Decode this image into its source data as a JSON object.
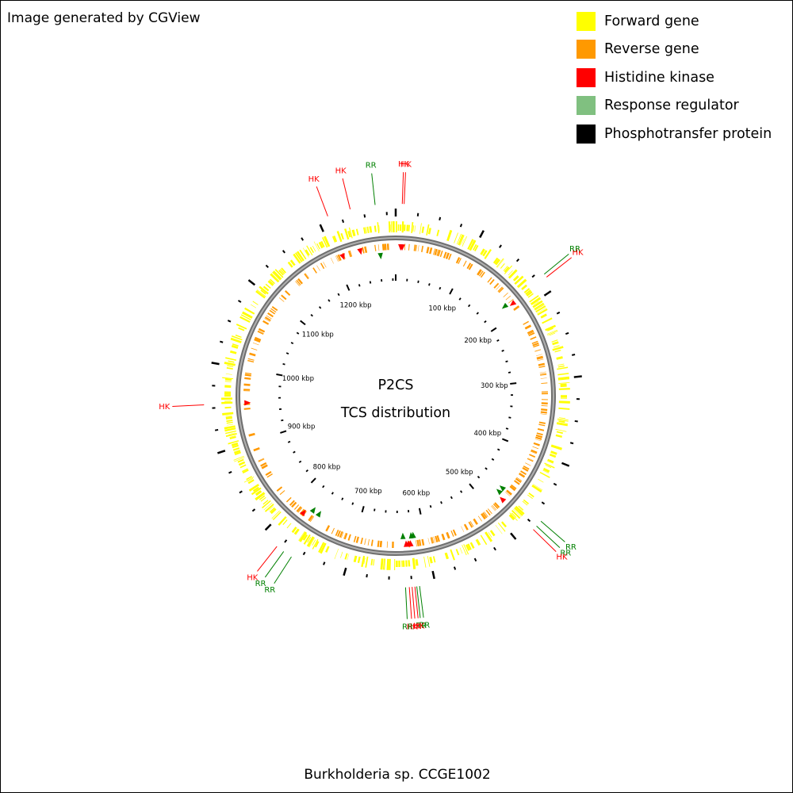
{
  "header": {
    "credit": "Image generated by CGView"
  },
  "legend": [
    {
      "label": "Forward gene",
      "color": "#ffff00",
      "icon": "square-swatch"
    },
    {
      "label": "Reverse gene",
      "color": "#ff9900",
      "icon": "square-swatch"
    },
    {
      "label": "Histidine kinase",
      "color": "#ff0000",
      "icon": "square-swatch"
    },
    {
      "label": "Response regulator",
      "color": "#80c080",
      "icon": "square-swatch"
    },
    {
      "label": "Phosphotransfer protein",
      "color": "#000000",
      "icon": "square-swatch"
    }
  ],
  "map": {
    "title": "P2CS",
    "subtitle": "TCS distribution",
    "organism": "Burkholderia sp. CCGE1002",
    "scale_unit": "kbp",
    "genome_length_kbp": 1285,
    "tick_labels_kbp": [
      100,
      200,
      300,
      400,
      500,
      600,
      700,
      800,
      900,
      1000,
      1100,
      1200
    ],
    "colors": {
      "forward": "#ffff00",
      "reverse": "#ff9900",
      "hk": "#ff0000",
      "rr": "#008000",
      "backbone": "#8a8a8a",
      "ticks": "#000000"
    },
    "features": [
      {
        "type": "HK",
        "pos_kbp": 7
      },
      {
        "type": "HK",
        "pos_kbp": 9
      },
      {
        "type": "RR",
        "pos_kbp": 1263
      },
      {
        "type": "HK",
        "pos_kbp": 1236
      },
      {
        "type": "HK",
        "pos_kbp": 1211
      },
      {
        "type": "HK",
        "pos_kbp": 185
      },
      {
        "type": "RR",
        "pos_kbp": 181
      },
      {
        "type": "HK",
        "pos_kbp": 954
      },
      {
        "type": "RR",
        "pos_kbp": 467
      },
      {
        "type": "RR",
        "pos_kbp": 474
      },
      {
        "type": "HK",
        "pos_kbp": 479
      },
      {
        "type": "RR",
        "pos_kbp": 617
      },
      {
        "type": "RR",
        "pos_kbp": 620
      },
      {
        "type": "HK",
        "pos_kbp": 622
      },
      {
        "type": "HK",
        "pos_kbp": 625
      },
      {
        "type": "HK",
        "pos_kbp": 628
      },
      {
        "type": "RR",
        "pos_kbp": 632
      },
      {
        "type": "HK",
        "pos_kbp": 779
      },
      {
        "type": "RR",
        "pos_kbp": 770
      },
      {
        "type": "RR",
        "pos_kbp": 760
      }
    ]
  }
}
